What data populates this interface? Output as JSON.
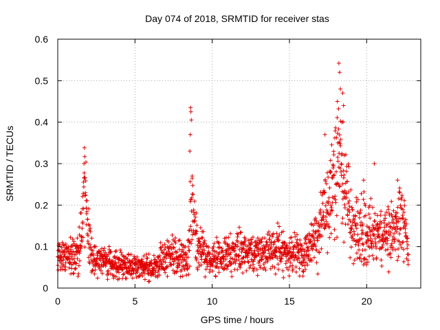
{
  "chart_data": {
    "type": "scatter",
    "title": "Day 074 of 2018, SRMTID for receiver stas",
    "xlabel": "GPS time / hours",
    "ylabel": "SRMTID / TECUs",
    "xlim": [
      0,
      23.5
    ],
    "ylim": [
      0,
      0.6
    ],
    "grid": true,
    "xticks": [
      0,
      5,
      10,
      15,
      20
    ],
    "xtick_labels": [
      "0",
      "5",
      "10",
      "15",
      "20"
    ],
    "yticks": [
      0,
      0.1,
      0.2,
      0.3,
      0.4,
      0.5,
      0.6
    ],
    "ytick_labels": [
      "0",
      "0.1",
      "0.2",
      "0.3",
      "0.4",
      "0.5",
      "0.6"
    ],
    "marker": "+",
    "marker_color": "#e00000",
    "sampling": {
      "x_start": 0,
      "x_end": 22.7,
      "step": 0.0125
    },
    "trend": {
      "x": [
        0,
        1.3,
        1.55,
        1.75,
        1.95,
        2.3,
        4.0,
        5.0,
        6.0,
        7.0,
        7.5,
        8.0,
        8.45,
        8.65,
        8.85,
        9.1,
        9.6,
        10.5,
        12.0,
        14.0,
        16.0,
        16.8,
        17.3,
        17.8,
        18.2,
        18.5,
        19.0,
        20.0,
        21.0,
        22.0,
        22.4,
        22.7
      ],
      "y": [
        0.07,
        0.08,
        0.13,
        0.26,
        0.13,
        0.07,
        0.055,
        0.05,
        0.05,
        0.07,
        0.085,
        0.065,
        0.07,
        0.22,
        0.16,
        0.1,
        0.07,
        0.075,
        0.09,
        0.09,
        0.08,
        0.13,
        0.2,
        0.22,
        0.3,
        0.25,
        0.15,
        0.13,
        0.12,
        0.14,
        0.16,
        0.08
      ]
    },
    "spread": 0.35,
    "peaks": [
      {
        "x": 1.75,
        "y": 0.317
      },
      {
        "x": 1.7,
        "y": 0.3
      },
      {
        "x": 8.6,
        "y": 0.435
      },
      {
        "x": 8.62,
        "y": 0.425
      },
      {
        "x": 8.65,
        "y": 0.405
      },
      {
        "x": 8.58,
        "y": 0.37
      },
      {
        "x": 8.55,
        "y": 0.33
      },
      {
        "x": 8.7,
        "y": 0.265
      },
      {
        "x": 18.2,
        "y": 0.542
      },
      {
        "x": 18.25,
        "y": 0.52
      },
      {
        "x": 18.3,
        "y": 0.48
      },
      {
        "x": 18.45,
        "y": 0.47
      },
      {
        "x": 18.5,
        "y": 0.44
      },
      {
        "x": 18.1,
        "y": 0.45
      },
      {
        "x": 18.4,
        "y": 0.4
      },
      {
        "x": 17.3,
        "y": 0.37
      },
      {
        "x": 20.5,
        "y": 0.3
      },
      {
        "x": 19.8,
        "y": 0.26
      },
      {
        "x": 22.0,
        "y": 0.26
      }
    ]
  }
}
